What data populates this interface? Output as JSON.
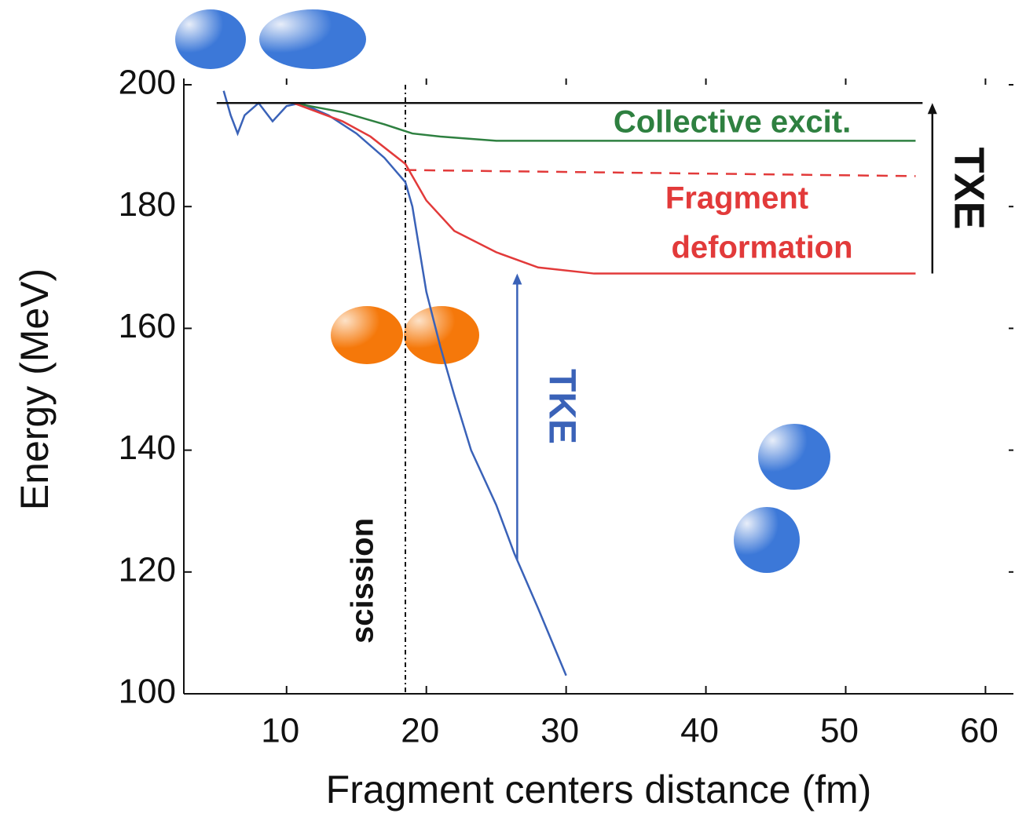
{
  "chart_data": {
    "type": "line",
    "x_label": "Fragment centers distance (fm)",
    "y_label": "Energy (MeV)",
    "xlim": [
      2.65,
      62
    ],
    "ylim": [
      100,
      200
    ],
    "xticks": [
      10,
      20,
      30,
      40,
      50,
      60
    ],
    "yticks": [
      100,
      120,
      140,
      160,
      180,
      200
    ],
    "series": [
      {
        "color": "#3a62b8",
        "dash": false,
        "x": [
          5.5,
          6,
          6.5,
          7,
          8,
          9,
          10,
          11,
          13,
          15,
          17,
          18.5,
          19,
          20,
          21,
          22,
          23.2,
          25,
          26.3,
          28,
          30
        ],
        "values": [
          199,
          195,
          192,
          195,
          197,
          194,
          196.5,
          197,
          195,
          192,
          188,
          184,
          180,
          166,
          157,
          149,
          140,
          131,
          123,
          114,
          103
        ]
      },
      {
        "color": "#2e8040",
        "dash": false,
        "x": [
          10.5,
          14,
          17,
          19,
          21,
          25,
          30,
          55
        ],
        "values": [
          197,
          195.5,
          193.5,
          192,
          191.5,
          190.8,
          190.8,
          190.8
        ]
      },
      {
        "color": "#e23a3a",
        "dash": false,
        "x": [
          10.5,
          14,
          16,
          18.5,
          20,
          22,
          25,
          28,
          32,
          55
        ],
        "values": [
          197,
          194,
          191.5,
          187,
          181,
          176,
          172.5,
          170,
          169,
          169
        ]
      },
      {
        "color": "#e23a3a",
        "dash": true,
        "x": [
          18.5,
          55
        ],
        "values": [
          186,
          185
        ]
      },
      {
        "color": "#111111",
        "dash": false,
        "x": [
          5,
          55.5
        ],
        "values": [
          197,
          197
        ]
      }
    ],
    "scission_x": 18.5,
    "arrows": [
      {
        "color": "#111111",
        "x": 56.2,
        "from": 169,
        "to": 197
      },
      {
        "color": "#3a62b8",
        "x": 26.5,
        "from": 122,
        "to": 169
      }
    ],
    "annotations": [
      {
        "text": "Collective excit.",
        "color": "#2e8040"
      },
      {
        "text": "Fragment",
        "color": "#e23a3a"
      },
      {
        "text": "deformation",
        "color": "#e23a3a"
      },
      {
        "text": "TXE",
        "color": "#111111"
      },
      {
        "text": "TKE",
        "color": "#3a62b8"
      },
      {
        "text": "scission",
        "color": "#111111"
      }
    ]
  }
}
